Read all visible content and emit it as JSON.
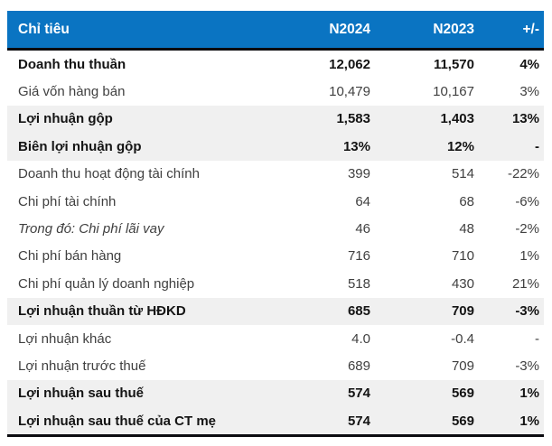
{
  "chart_data": {
    "type": "table",
    "title": "",
    "columns": [
      "Chỉ tiêu",
      "N2024",
      "N2023",
      "+/-"
    ],
    "rows": [
      {
        "label": "Doanh thu thuần",
        "n2024": "12,062",
        "n2023": "11,570",
        "change": "4%",
        "style": "bold"
      },
      {
        "label": "Giá vốn hàng bán",
        "n2024": "10,479",
        "n2023": "10,167",
        "change": "3%",
        "style": "normal"
      },
      {
        "label": "Lợi nhuận gộp",
        "n2024": "1,583",
        "n2023": "1,403",
        "change": "13%",
        "style": "bold-highlight"
      },
      {
        "label": "Biên lợi nhuận gộp",
        "n2024": "13%",
        "n2023": "12%",
        "change": "-",
        "style": "bold-highlight"
      },
      {
        "label": "Doanh thu hoạt động tài chính",
        "n2024": "399",
        "n2023": "514",
        "change": "-22%",
        "style": "normal"
      },
      {
        "label": "Chi phí tài chính",
        "n2024": "64",
        "n2023": "68",
        "change": "-6%",
        "style": "normal"
      },
      {
        "label": "Trong đó: Chi phí lãi vay",
        "n2024": "46",
        "n2023": "48",
        "change": "-2%",
        "style": "italic"
      },
      {
        "label": "Chi phí bán hàng",
        "n2024": "716",
        "n2023": "710",
        "change": "1%",
        "style": "normal"
      },
      {
        "label": "Chi phí quản lý doanh nghiệp",
        "n2024": "518",
        "n2023": "430",
        "change": "21%",
        "style": "normal"
      },
      {
        "label": "Lợi nhuận thuần từ HĐKD",
        "n2024": "685",
        "n2023": "709",
        "change": "-3%",
        "style": "bold-highlight"
      },
      {
        "label": "Lợi nhuận khác",
        "n2024": "4.0",
        "n2023": "-0.4",
        "change": "-",
        "style": "normal"
      },
      {
        "label": "Lợi nhuận trước thuế",
        "n2024": "689",
        "n2023": "709",
        "change": "-3%",
        "style": "normal"
      },
      {
        "label": "Lợi nhuận sau thuế",
        "n2024": "574",
        "n2023": "569",
        "change": "1%",
        "style": "bold-highlight"
      },
      {
        "label": "Lợi nhuận sau thuế của CT mẹ",
        "n2024": "574",
        "n2023": "569",
        "change": "1%",
        "style": "bold-highlight"
      }
    ],
    "layout": {
      "grid": "off",
      "legend": "none",
      "value_alignment": "right",
      "highlight_rows_have_gray_background": true
    },
    "colors": {
      "header_background": "#0a74c2",
      "header_text": "#ffffff",
      "highlight_row_background": "#f0f0f0",
      "border": "#0c0c10",
      "body_text": "#404040",
      "bold_text": "#141414"
    }
  }
}
